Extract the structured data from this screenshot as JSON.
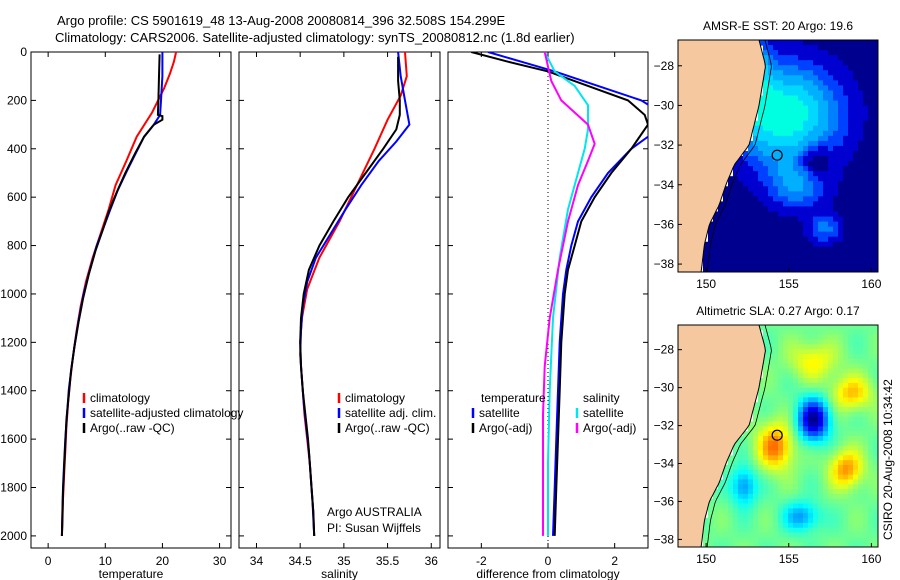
{
  "header": {
    "line1": "Argo profile: CS 5901619_48 13-Aug-2008 20080814_396 32.508S 154.299E",
    "line2": "Climatology: CARS2006. Satellite-adjusted climatology: synTS_20080812.nc (1.8d earlier)"
  },
  "side_label": "CSIRO 20-Aug-2008 10:34:42",
  "colors": {
    "climatology": "#ff0000",
    "satellite": "#0000ff",
    "argo": "#000000",
    "salinity_satellite": "#00e5ee",
    "salinity_argo": "#ff00ff",
    "land": "#f5c8a0",
    "coast": "#000000"
  },
  "chart_data": [
    {
      "type": "line",
      "id": "temperature",
      "xlabel": "temperature",
      "ylabel": "",
      "xlim": [
        -3,
        32
      ],
      "ylim": [
        2050,
        0
      ],
      "y_reversed": true,
      "xticks": [
        0,
        10,
        20,
        30
      ],
      "yticks": [
        0,
        200,
        400,
        600,
        800,
        1000,
        1200,
        1400,
        1600,
        1800,
        2000
      ],
      "legend": [
        "climatology",
        "satellite-adjusted climatology",
        "Argo(..raw -QC)"
      ],
      "series": [
        {
          "name": "climatology",
          "color": "#ff0000",
          "points": [
            [
              22.4,
              0
            ],
            [
              22,
              40
            ],
            [
              21.3,
              90
            ],
            [
              20.3,
              150
            ],
            [
              18.2,
              250
            ],
            [
              15.5,
              350
            ],
            [
              13.7,
              450
            ],
            [
              11.8,
              550
            ],
            [
              10.6,
              650
            ],
            [
              9.2,
              750
            ],
            [
              7.8,
              850
            ],
            [
              6.6,
              950
            ],
            [
              5.7,
              1050
            ],
            [
              5,
              1150
            ],
            [
              4.4,
              1250
            ],
            [
              3.9,
              1350
            ],
            [
              3.5,
              1450
            ],
            [
              3.2,
              1550
            ],
            [
              3,
              1650
            ],
            [
              2.8,
              1750
            ],
            [
              2.6,
              1850
            ],
            [
              2.5,
              1950
            ],
            [
              2.4,
              2000
            ]
          ]
        },
        {
          "name": "satellite-adjusted climatology",
          "color": "#0000ff",
          "points": [
            [
              20,
              0
            ],
            [
              20,
              100
            ],
            [
              19.8,
              180
            ],
            [
              19.6,
              260
            ],
            [
              18.5,
              300
            ],
            [
              16.8,
              350
            ],
            [
              15.3,
              420
            ],
            [
              13.6,
              500
            ],
            [
              12.2,
              570
            ],
            [
              10.9,
              650
            ],
            [
              9.8,
              720
            ],
            [
              8.5,
              800
            ],
            [
              7.3,
              900
            ],
            [
              6.2,
              1000
            ],
            [
              5.4,
              1100
            ],
            [
              4.7,
              1200
            ],
            [
              4.1,
              1300
            ],
            [
              3.6,
              1400
            ],
            [
              3.3,
              1500
            ],
            [
              3,
              1600
            ],
            [
              2.8,
              1700
            ],
            [
              2.6,
              1800
            ],
            [
              2.5,
              1900
            ],
            [
              2.4,
              2000
            ]
          ]
        },
        {
          "name": "Argo(..raw -QC)",
          "color": "#000000",
          "points": [
            [
              19.5,
              10
            ],
            [
              19.4,
              100
            ],
            [
              19.3,
              200
            ],
            [
              19.2,
              260
            ],
            [
              20,
              265
            ],
            [
              20,
              280
            ],
            [
              18.5,
              300
            ],
            [
              16.8,
              350
            ],
            [
              15.2,
              420
            ],
            [
              13.5,
              500
            ],
            [
              12,
              580
            ],
            [
              10.6,
              660
            ],
            [
              9.5,
              740
            ],
            [
              8.3,
              820
            ],
            [
              7.1,
              920
            ],
            [
              6.1,
              1020
            ],
            [
              5.3,
              1120
            ],
            [
              4.6,
              1220
            ],
            [
              4,
              1320
            ],
            [
              3.6,
              1420
            ],
            [
              3.2,
              1520
            ],
            [
              3,
              1620
            ],
            [
              2.8,
              1720
            ],
            [
              2.6,
              1820
            ],
            [
              2.5,
              1920
            ],
            [
              2.4,
              2000
            ]
          ]
        }
      ]
    },
    {
      "type": "line",
      "id": "salinity",
      "xlabel": "salinity",
      "ylabel": "",
      "xlim": [
        33.8,
        36.1
      ],
      "ylim": [
        2050,
        0
      ],
      "y_reversed": true,
      "xticks": [
        34,
        34.5,
        35,
        35.5,
        36
      ],
      "yticks": [
        0,
        200,
        400,
        600,
        800,
        1000,
        1200,
        1400,
        1600,
        1800,
        2000
      ],
      "legend": [
        "climatology",
        "satellite adj. clim.",
        "Argo(..raw -QC)"
      ],
      "annotation": [
        "Argo AUSTRALIA",
        "PI: Susan Wijffels"
      ],
      "series": [
        {
          "name": "climatology",
          "color": "#ff0000",
          "points": [
            [
              35.7,
              0
            ],
            [
              35.72,
              100
            ],
            [
              35.65,
              180
            ],
            [
              35.5,
              280
            ],
            [
              35.35,
              400
            ],
            [
              35.15,
              550
            ],
            [
              34.95,
              700
            ],
            [
              34.72,
              850
            ],
            [
              34.58,
              980
            ],
            [
              34.52,
              1100
            ],
            [
              34.5,
              1200
            ],
            [
              34.51,
              1300
            ],
            [
              34.53,
              1400
            ],
            [
              34.55,
              1500
            ],
            [
              34.58,
              1600
            ],
            [
              34.61,
              1700
            ],
            [
              34.63,
              1800
            ],
            [
              34.65,
              1900
            ],
            [
              34.66,
              2000
            ]
          ]
        },
        {
          "name": "satellite adj. clim.",
          "color": "#0000ff",
          "points": [
            [
              35.62,
              0
            ],
            [
              35.65,
              100
            ],
            [
              35.7,
              200
            ],
            [
              35.75,
              300
            ],
            [
              35.6,
              370
            ],
            [
              35.4,
              450
            ],
            [
              35.2,
              550
            ],
            [
              35.02,
              650
            ],
            [
              34.85,
              750
            ],
            [
              34.68,
              850
            ],
            [
              34.58,
              950
            ],
            [
              34.53,
              1050
            ],
            [
              34.51,
              1150
            ],
            [
              34.5,
              1250
            ],
            [
              34.52,
              1350
            ],
            [
              34.54,
              1450
            ],
            [
              34.57,
              1550
            ],
            [
              34.6,
              1650
            ],
            [
              34.62,
              1750
            ],
            [
              34.64,
              1850
            ],
            [
              34.66,
              2000
            ]
          ]
        },
        {
          "name": "Argo(..raw -QC)",
          "color": "#000000",
          "points": [
            [
              35.62,
              20
            ],
            [
              35.62,
              120
            ],
            [
              35.64,
              200
            ],
            [
              35.64,
              260
            ],
            [
              35.6,
              320
            ],
            [
              35.45,
              400
            ],
            [
              35.25,
              500
            ],
            [
              35.05,
              600
            ],
            [
              34.88,
              700
            ],
            [
              34.72,
              800
            ],
            [
              34.6,
              900
            ],
            [
              34.54,
              1000
            ],
            [
              34.51,
              1100
            ],
            [
              34.5,
              1200
            ],
            [
              34.51,
              1300
            ],
            [
              34.53,
              1400
            ],
            [
              34.56,
              1500
            ],
            [
              34.59,
              1600
            ],
            [
              34.61,
              1700
            ],
            [
              34.63,
              1800
            ],
            [
              34.65,
              1900
            ],
            [
              34.66,
              2000
            ]
          ]
        }
      ]
    },
    {
      "type": "line",
      "id": "difference",
      "xlabel": "difference from climatology",
      "ylabel": "",
      "xlim": [
        -3,
        3
      ],
      "ylim": [
        2050,
        0
      ],
      "y_reversed": true,
      "xticks": [
        -2,
        0,
        2
      ],
      "yticks": [
        0,
        200,
        400,
        600,
        800,
        1000,
        1200,
        1400,
        1600,
        1800,
        2000
      ],
      "zero_line": true,
      "legend_titles": [
        "temperature",
        "salinity"
      ],
      "legend_temperature": [
        "satellite",
        "Argo(-adj)"
      ],
      "legend_salinity": [
        "satellite",
        "Argo(-adj)"
      ],
      "series": [
        {
          "name": "temperature satellite",
          "color": "#0000ff",
          "points": [
            [
              -1.8,
              0
            ],
            [
              -0.8,
              40
            ],
            [
              0.2,
              80
            ],
            [
              1.5,
              140
            ],
            [
              2.8,
              200
            ],
            [
              3.5,
              260
            ],
            [
              3.5,
              300
            ],
            [
              2.5,
              400
            ],
            [
              1.8,
              500
            ],
            [
              1.3,
              600
            ],
            [
              0.9,
              700
            ],
            [
              0.7,
              800
            ],
            [
              0.55,
              900
            ],
            [
              0.45,
              1000
            ],
            [
              0.35,
              1200
            ],
            [
              0.3,
              1400
            ],
            [
              0.25,
              1600
            ],
            [
              0.2,
              1800
            ],
            [
              0.15,
              2000
            ]
          ]
        },
        {
          "name": "temperature Argo(-adj)",
          "color": "#000000",
          "points": [
            [
              -2.3,
              0
            ],
            [
              -1.2,
              40
            ],
            [
              0,
              80
            ],
            [
              1.2,
              140
            ],
            [
              2.4,
              200
            ],
            [
              2.9,
              260
            ],
            [
              3,
              300
            ],
            [
              2.5,
              400
            ],
            [
              1.9,
              500
            ],
            [
              1.4,
              600
            ],
            [
              1,
              700
            ],
            [
              0.8,
              800
            ],
            [
              0.6,
              900
            ],
            [
              0.5,
              1000
            ],
            [
              0.4,
              1200
            ],
            [
              0.35,
              1400
            ],
            [
              0.3,
              1600
            ],
            [
              0.25,
              1800
            ],
            [
              0.2,
              2000
            ]
          ]
        },
        {
          "name": "salinity satellite",
          "color": "#00e5ee",
          "points": [
            [
              -0.1,
              0
            ],
            [
              0.2,
              80
            ],
            [
              0.8,
              140
            ],
            [
              1.2,
              220
            ],
            [
              1.2,
              320
            ],
            [
              1.1,
              400
            ],
            [
              0.9,
              500
            ],
            [
              0.6,
              650
            ],
            [
              0.35,
              850
            ],
            [
              0.15,
              1100
            ],
            [
              0.05,
              1400
            ],
            [
              0,
              1700
            ],
            [
              0,
              2000
            ]
          ]
        },
        {
          "name": "salinity Argo(-adj)",
          "color": "#ff00ff",
          "points": [
            [
              -0.1,
              0
            ],
            [
              0,
              60
            ],
            [
              0.1,
              120
            ],
            [
              0.4,
              200
            ],
            [
              1.2,
              300
            ],
            [
              1.4,
              380
            ],
            [
              1.2,
              450
            ],
            [
              0.9,
              550
            ],
            [
              0.6,
              700
            ],
            [
              0.3,
              900
            ],
            [
              0.05,
              1100
            ],
            [
              -0.1,
              1300
            ],
            [
              -0.15,
              1500
            ],
            [
              -0.15,
              2000
            ]
          ]
        }
      ]
    },
    {
      "type": "heatmap",
      "id": "sst_map",
      "title": "AMSR-E SST: 20  Argo: 19.6",
      "xlim": [
        148.3,
        160.4
      ],
      "ylim": [
        -38.4,
        -26.7
      ],
      "xticks": [
        150,
        155,
        160
      ],
      "yticks": [
        -28,
        -30,
        -32,
        -34,
        -36,
        -38
      ],
      "marker": {
        "lon": 154.299,
        "lat": -32.508
      }
    },
    {
      "type": "heatmap",
      "id": "sla_map",
      "title": "Altimetric SLA: 0.27  Argo: 0.17",
      "xlim": [
        148.3,
        160.4
      ],
      "ylim": [
        -38.4,
        -26.7
      ],
      "xticks": [
        150,
        155,
        160
      ],
      "yticks": [
        -28,
        -30,
        -32,
        -34,
        -36,
        -38
      ],
      "marker": {
        "lon": 154.299,
        "lat": -32.508
      }
    }
  ]
}
